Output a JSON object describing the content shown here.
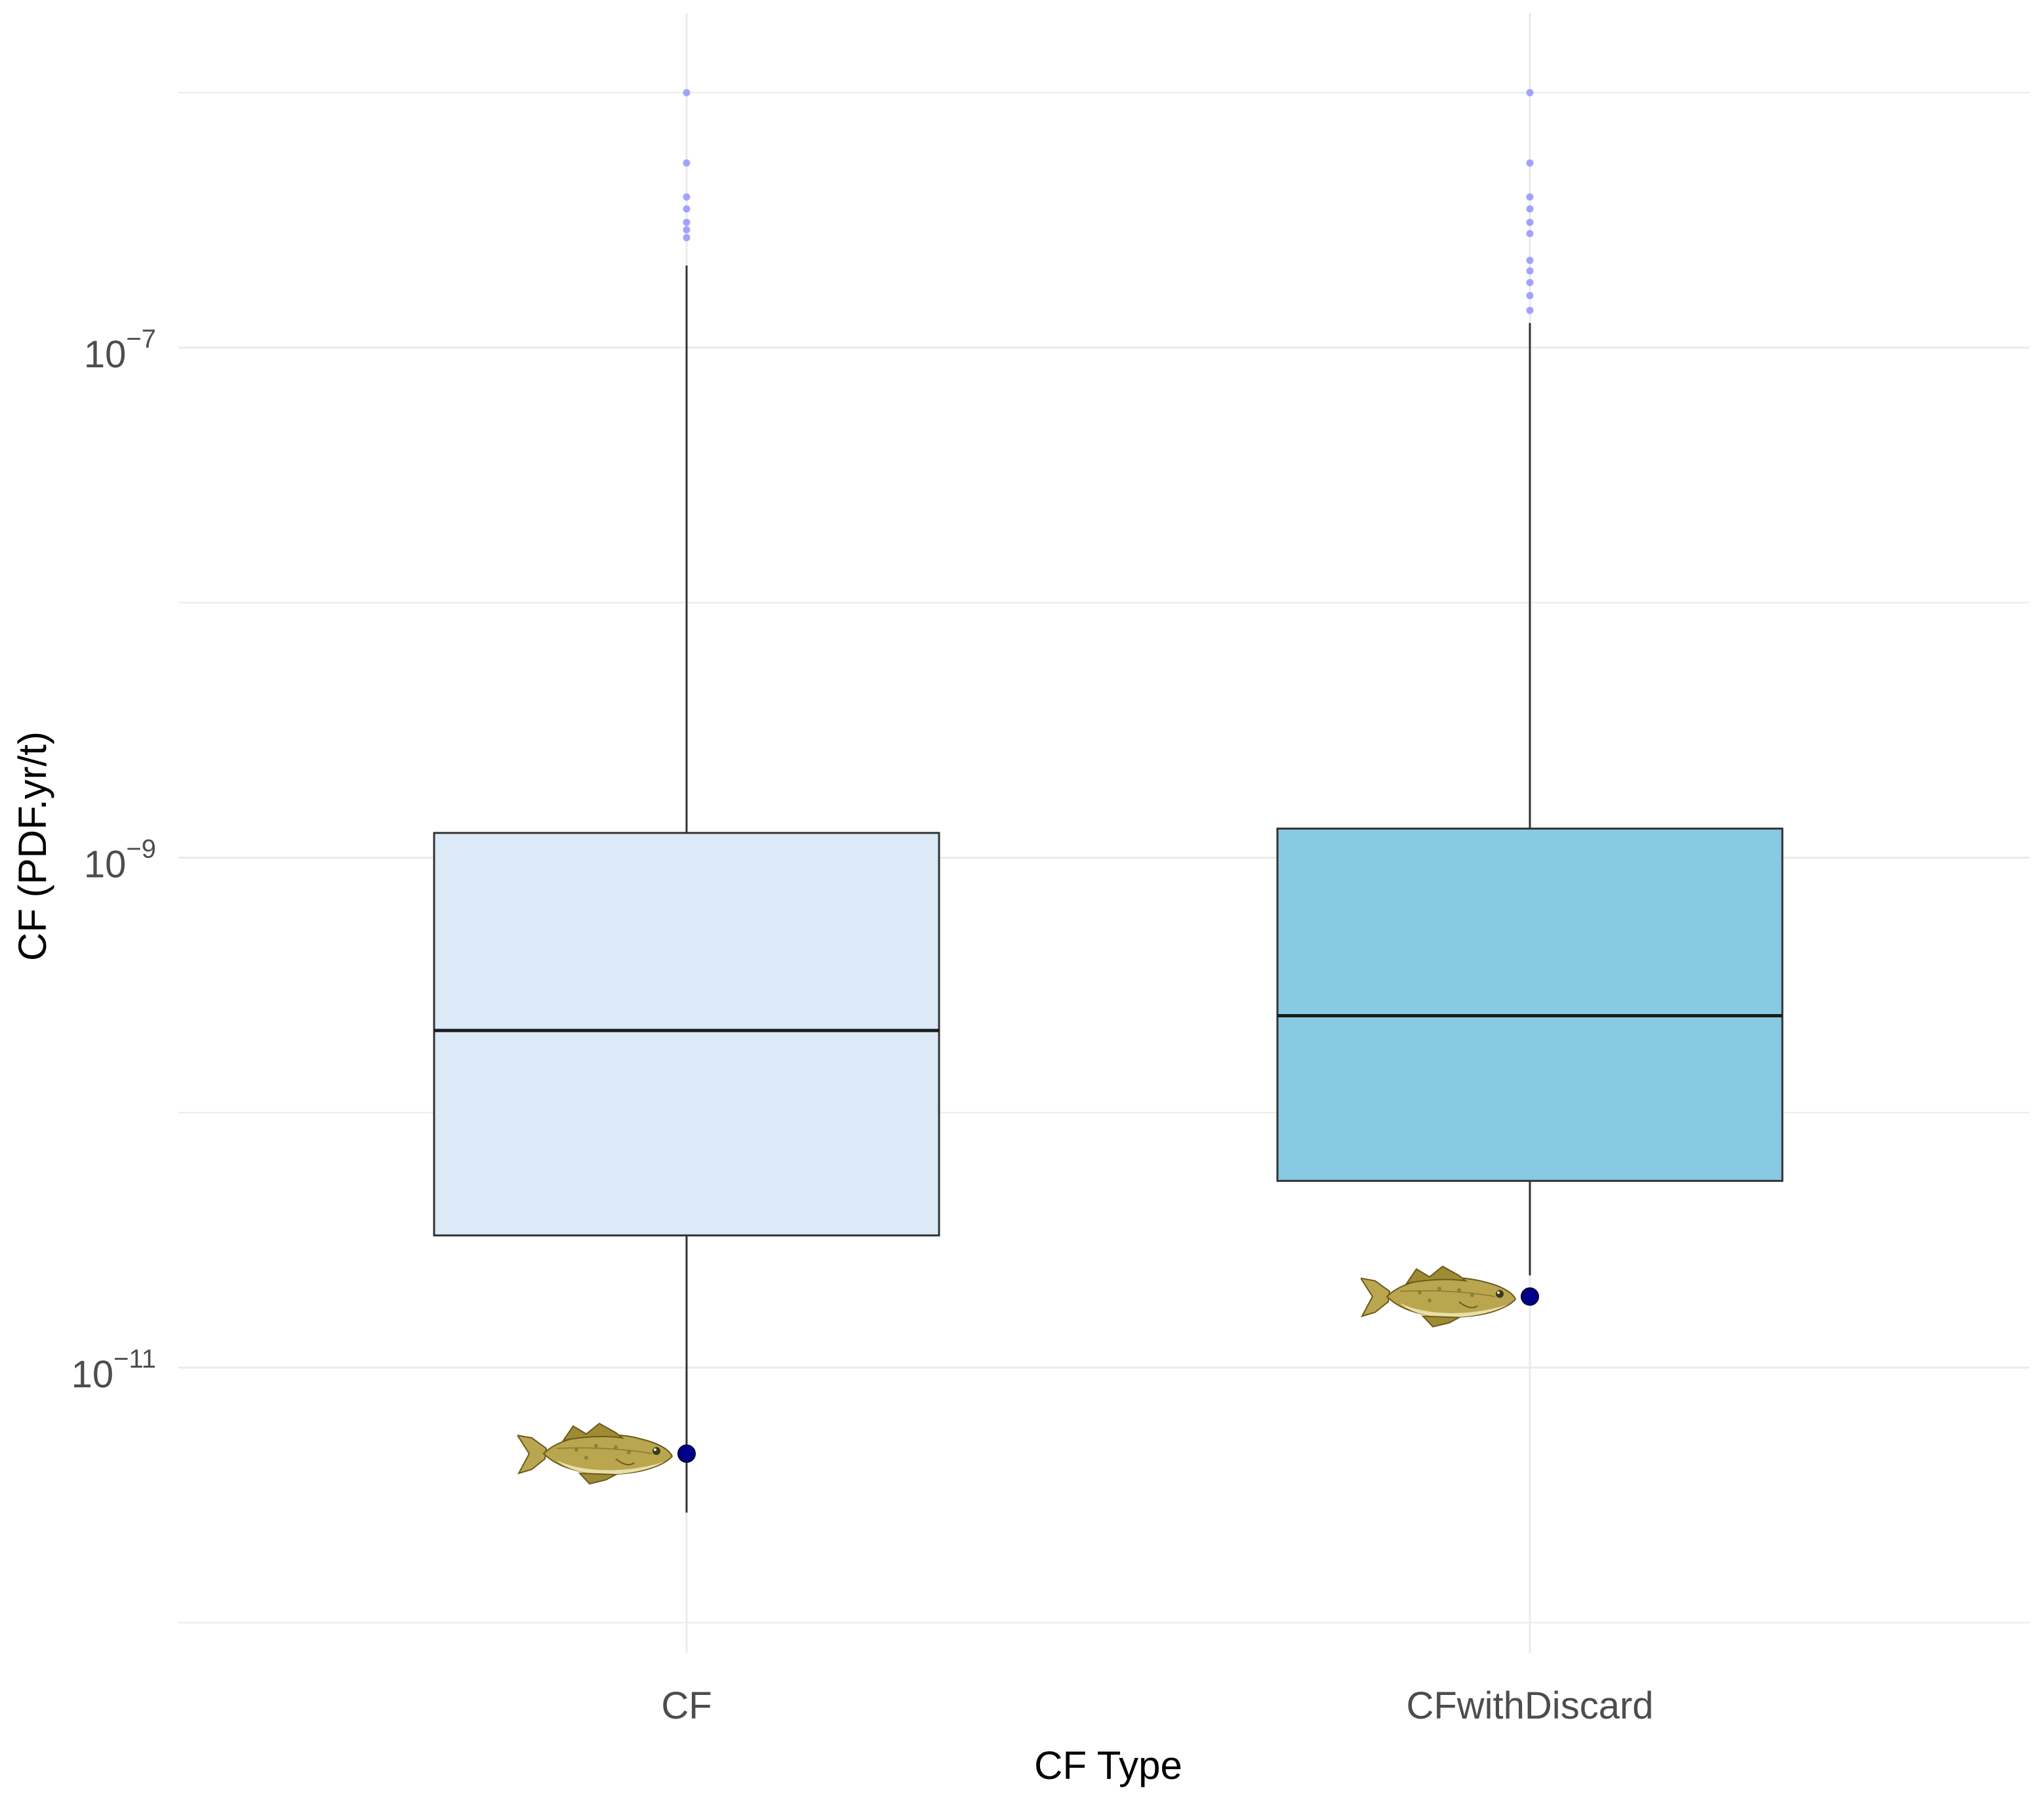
{
  "chart_data": {
    "type": "boxplot",
    "xlabel": "CF Type",
    "ylabel": "CF (PDF.yr/t)",
    "y_scale": "log10",
    "ylim": [
      1e-12,
      1.6e-06
    ],
    "grid": true,
    "y_ticks": [
      {
        "value": 1e-07,
        "base": "10",
        "exp": "−7"
      },
      {
        "value": 1e-09,
        "base": "10",
        "exp": "−9"
      },
      {
        "value": 1e-11,
        "base": "10",
        "exp": "−11"
      }
    ],
    "categories": [
      "CF",
      "CFwithDiscard"
    ],
    "boxes": [
      {
        "category": "CF",
        "fill": "#dbeaf6",
        "whisker_low": 2.7e-12,
        "q1": 3.3e-11,
        "median": 2.1e-10,
        "q3": 1.25e-09,
        "whisker_high": 2.1e-07,
        "outliers": [
          1e-06,
          5.3e-07,
          3.9e-07,
          3.5e-07,
          3.1e-07,
          2.9e-07,
          2.7e-07
        ],
        "highlight_point": 4.6e-12
      },
      {
        "category": "CFwithDiscard",
        "fill": "#87cae2",
        "whisker_low": 2.3e-11,
        "q1": 5.4e-11,
        "median": 2.4e-10,
        "q3": 1.3e-09,
        "whisker_high": 1.25e-07,
        "outliers": [
          1e-06,
          5.3e-07,
          3.9e-07,
          3.5e-07,
          3.1e-07,
          2.8e-07,
          2.2e-07,
          2e-07,
          1.8e-07,
          1.6e-07,
          1.4e-07
        ],
        "highlight_point": 1.9e-11
      }
    ],
    "colors": {
      "grid": "#ebebeb",
      "outlier": "#9999ff",
      "highlight_point": "#00008b",
      "box_line": "#333333",
      "fish_body": "#b9a64e",
      "fish_dark": "#6b5a1c",
      "fish_belly": "#e8dfa7"
    },
    "icons": [
      "fish-icon"
    ]
  }
}
